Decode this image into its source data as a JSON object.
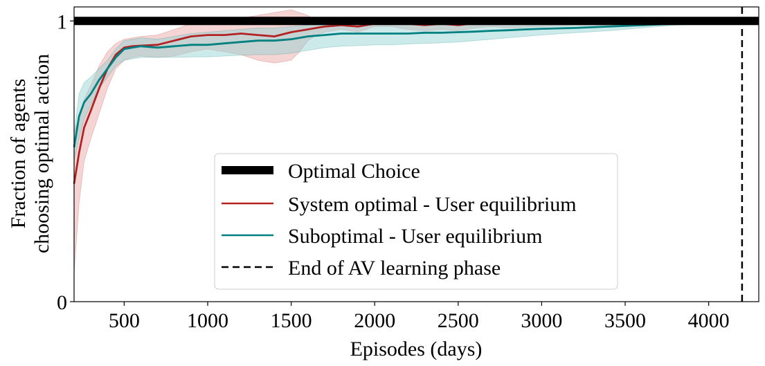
{
  "chart_data": {
    "type": "line",
    "title": "",
    "xlabel": "Episodes (days)",
    "ylabel_line1": "Fraction of agents",
    "ylabel_line2": "choosing optimal action",
    "xlim": [
      200,
      4300
    ],
    "ylim": [
      0,
      1.05
    ],
    "x_ticks": [
      500,
      1000,
      1500,
      2000,
      2500,
      3000,
      3500,
      4000
    ],
    "y_ticks": [
      0,
      1
    ],
    "y_tick_labels": [
      "0",
      "1"
    ],
    "legend": {
      "position": "lower-center",
      "entries": [
        {
          "label": "Optimal Choice",
          "style": "thick",
          "color": "#000000"
        },
        {
          "label": "System optimal - User equilibrium",
          "style": "solid",
          "color": "#b22222"
        },
        {
          "label": "Suboptimal - User equilibrium",
          "style": "solid",
          "color": "#008080"
        },
        {
          "label": "End of AV learning phase",
          "style": "dashed",
          "color": "#000000"
        }
      ]
    },
    "reference_line": {
      "name": "Optimal Choice",
      "y": 1.0,
      "color": "#000000"
    },
    "vertical_line": {
      "name": "End of AV learning phase",
      "x": 4200,
      "color": "#000000"
    },
    "series": [
      {
        "name": "System optimal - User equilibrium",
        "color": "#b22222",
        "band_color": "#e8a0a0",
        "x": [
          200,
          230,
          260,
          300,
          350,
          400,
          450,
          500,
          550,
          600,
          700,
          800,
          900,
          1000,
          1100,
          1200,
          1300,
          1400,
          1500,
          1550,
          1600,
          1650,
          1700,
          1800,
          1900,
          2000,
          2100,
          2200,
          2300,
          2400,
          2500,
          2600,
          2700,
          2800,
          2900,
          3000,
          3200,
          3400,
          3600,
          3800,
          4000,
          4200,
          4300
        ],
        "y": [
          0.42,
          0.53,
          0.62,
          0.68,
          0.76,
          0.83,
          0.88,
          0.905,
          0.91,
          0.912,
          0.915,
          0.93,
          0.945,
          0.95,
          0.95,
          0.955,
          0.95,
          0.945,
          0.96,
          0.965,
          0.97,
          0.975,
          0.98,
          0.985,
          0.98,
          0.99,
          0.995,
          0.99,
          0.985,
          0.99,
          0.985,
          0.992,
          0.995,
          0.99,
          0.99,
          0.992,
          0.995,
          0.995,
          0.998,
          0.998,
          1.0,
          1.0,
          1.0
        ],
        "lower": [
          0.1,
          0.35,
          0.5,
          0.58,
          0.67,
          0.76,
          0.83,
          0.86,
          0.87,
          0.875,
          0.87,
          0.875,
          0.89,
          0.9,
          0.89,
          0.88,
          0.86,
          0.85,
          0.86,
          0.89,
          0.93,
          0.95,
          0.96,
          0.97,
          0.96,
          0.98,
          0.98,
          0.97,
          0.965,
          0.97,
          0.965,
          0.975,
          0.98,
          0.975,
          0.978,
          0.98,
          0.985,
          0.985,
          0.99,
          0.99,
          0.995,
          0.998,
          0.998
        ],
        "upper": [
          0.6,
          0.66,
          0.72,
          0.77,
          0.84,
          0.89,
          0.92,
          0.935,
          0.94,
          0.945,
          0.95,
          0.97,
          0.99,
          0.99,
          1.0,
          1.01,
          1.02,
          1.03,
          1.04,
          1.03,
          1.02,
          1.0,
          1.0,
          1.0,
          1.0,
          1.005,
          1.01,
          1.01,
          1.005,
          1.005,
          1.0,
          1.005,
          1.01,
          1.005,
          1.005,
          1.0,
          1.005,
          1.005,
          1.005,
          1.005,
          1.005,
          1.003,
          1.003
        ]
      },
      {
        "name": "Suboptimal - User equilibrium",
        "color": "#008080",
        "band_color": "#90d0d0",
        "x": [
          200,
          230,
          260,
          300,
          350,
          400,
          450,
          500,
          550,
          600,
          700,
          800,
          900,
          1000,
          1100,
          1200,
          1300,
          1400,
          1500,
          1600,
          1700,
          1800,
          1900,
          2000,
          2100,
          2200,
          2300,
          2400,
          2500,
          2600,
          2700,
          2800,
          2900,
          3000,
          3200,
          3400,
          3600,
          3800,
          4000,
          4200,
          4300
        ],
        "y": [
          0.55,
          0.66,
          0.71,
          0.74,
          0.79,
          0.83,
          0.87,
          0.9,
          0.905,
          0.91,
          0.905,
          0.91,
          0.915,
          0.915,
          0.92,
          0.925,
          0.93,
          0.93,
          0.935,
          0.945,
          0.95,
          0.955,
          0.955,
          0.955,
          0.955,
          0.955,
          0.958,
          0.958,
          0.96,
          0.962,
          0.965,
          0.967,
          0.97,
          0.972,
          0.975,
          0.98,
          0.985,
          0.99,
          0.995,
          1.0,
          1.0
        ],
        "lower": [
          0.5,
          0.58,
          0.65,
          0.7,
          0.76,
          0.8,
          0.84,
          0.86,
          0.865,
          0.87,
          0.87,
          0.87,
          0.872,
          0.872,
          0.875,
          0.878,
          0.88,
          0.88,
          0.885,
          0.895,
          0.905,
          0.91,
          0.912,
          0.915,
          0.915,
          0.918,
          0.92,
          0.922,
          0.925,
          0.93,
          0.935,
          0.94,
          0.945,
          0.95,
          0.958,
          0.965,
          0.975,
          0.985,
          0.99,
          0.998,
          0.998
        ],
        "upper": [
          0.6,
          0.74,
          0.78,
          0.8,
          0.83,
          0.86,
          0.9,
          0.93,
          0.935,
          0.94,
          0.935,
          0.945,
          0.955,
          0.96,
          0.965,
          0.97,
          0.975,
          0.975,
          0.98,
          0.985,
          0.99,
          0.992,
          0.995,
          0.995,
          0.995,
          0.995,
          0.995,
          0.995,
          0.995,
          0.995,
          0.995,
          0.995,
          0.996,
          0.996,
          0.997,
          0.998,
          0.998,
          0.999,
          1.0,
          1.002,
          1.002
        ]
      }
    ]
  }
}
